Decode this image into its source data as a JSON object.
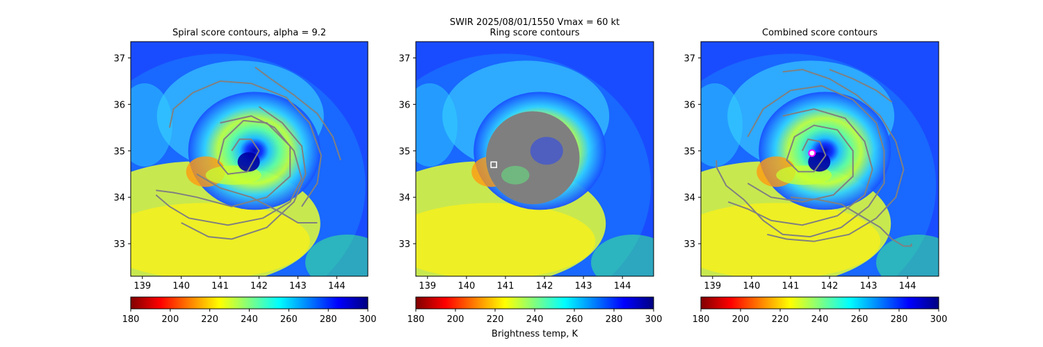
{
  "figure": {
    "suptitle_line1": "SWIR  2025/08/01/1550    Vmax = 60 kt",
    "colorbar_label": "Brightness temp, K"
  },
  "colors": {
    "contour": "#808080",
    "ring_fill": "#7f7f7f",
    "center_marker": "#ff00ff",
    "colormap": [
      "#800000",
      "#ff0000",
      "#ff8000",
      "#ffff00",
      "#80ff80",
      "#00ffff",
      "#0080ff",
      "#0000ff",
      "#000080"
    ]
  },
  "chart_data": [
    {
      "type": "heatmap",
      "title": "Spiral score contours, alpha =  9.2",
      "xlim": [
        138.7,
        144.8
      ],
      "ylim": [
        32.3,
        37.35
      ],
      "xticks": [
        "139",
        "140",
        "141",
        "142",
        "143",
        "144"
      ],
      "yticks": [
        "33",
        "34",
        "35",
        "36",
        "37"
      ],
      "xtick_values": [
        139,
        140,
        141,
        142,
        143,
        144
      ],
      "ytick_values": [
        33,
        34,
        35,
        36,
        37
      ],
      "storm_center": [
        141.7,
        34.85
      ],
      "colorbar": {
        "range": [
          180,
          300
        ],
        "ticks": [
          "180",
          "200",
          "220",
          "240",
          "260",
          "280",
          "300"
        ],
        "tick_values": [
          180,
          200,
          220,
          240,
          260,
          280,
          300
        ]
      },
      "contours": [
        {
          "name": "spiral-1",
          "points": [
            [
              141.3,
              35.0
            ],
            [
              141.5,
              35.25
            ],
            [
              141.8,
              35.25
            ],
            [
              142.0,
              35.0
            ],
            [
              141.7,
              34.55
            ],
            [
              141.2,
              34.5
            ],
            [
              140.95,
              34.75
            ],
            [
              141.1,
              35.25
            ],
            [
              141.6,
              35.65
            ],
            [
              142.2,
              35.6
            ],
            [
              142.8,
              35.1
            ],
            [
              142.8,
              34.45
            ],
            [
              142.2,
              34.0
            ],
            [
              141.3,
              33.8
            ],
            [
              140.4,
              34.0
            ],
            [
              139.8,
              34.1
            ],
            [
              139.35,
              34.15
            ]
          ]
        },
        {
          "name": "spiral-2",
          "points": [
            [
              141.0,
              35.6
            ],
            [
              141.8,
              35.75
            ],
            [
              142.4,
              35.5
            ],
            [
              142.9,
              35.0
            ],
            [
              143.1,
              34.4
            ],
            [
              142.8,
              33.9
            ],
            [
              142.1,
              33.55
            ],
            [
              141.2,
              33.4
            ],
            [
              140.2,
              33.55
            ],
            [
              139.7,
              33.8
            ],
            [
              139.35,
              34.05
            ]
          ]
        },
        {
          "name": "spiral-3",
          "points": [
            [
              142.0,
              35.95
            ],
            [
              142.6,
              35.6
            ],
            [
              143.1,
              35.1
            ],
            [
              143.2,
              34.5
            ],
            [
              142.9,
              33.9
            ],
            [
              142.2,
              33.35
            ],
            [
              141.3,
              33.1
            ],
            [
              140.7,
              33.15
            ],
            [
              140.0,
              33.45
            ]
          ]
        },
        {
          "name": "spiral-4",
          "points": [
            [
              139.7,
              35.5
            ],
            [
              139.8,
              35.9
            ],
            [
              140.3,
              36.25
            ],
            [
              141.0,
              36.5
            ],
            [
              141.8,
              36.45
            ],
            [
              142.7,
              36.15
            ],
            [
              143.3,
              35.6
            ],
            [
              143.6,
              34.9
            ],
            [
              143.5,
              34.3
            ],
            [
              143.1,
              33.8
            ]
          ]
        },
        {
          "name": "spiral-5",
          "points": [
            [
              141.9,
              36.8
            ],
            [
              142.3,
              36.55
            ],
            [
              142.9,
              36.2
            ],
            [
              143.5,
              35.8
            ],
            [
              143.9,
              35.3
            ],
            [
              144.1,
              34.8
            ]
          ]
        },
        {
          "name": "spiral-6",
          "points": [
            [
              140.4,
              34.5
            ],
            [
              141.0,
              34.2
            ],
            [
              141.8,
              34.0
            ],
            [
              142.5,
              33.7
            ],
            [
              143.0,
              33.45
            ],
            [
              143.3,
              33.45
            ],
            [
              143.5,
              33.45
            ]
          ]
        }
      ]
    },
    {
      "type": "heatmap",
      "title": "Ring score contours",
      "xlim": [
        138.7,
        144.8
      ],
      "ylim": [
        32.3,
        37.35
      ],
      "xticks": [
        "139",
        "140",
        "141",
        "142",
        "143",
        "144"
      ],
      "yticks": [
        "33",
        "34",
        "35",
        "36",
        "37"
      ],
      "xtick_values": [
        139,
        140,
        141,
        142,
        143,
        144
      ],
      "ytick_values": [
        33,
        34,
        35,
        36,
        37
      ],
      "storm_center": [
        141.7,
        34.85
      ],
      "ring": {
        "center": [
          141.7,
          34.85
        ],
        "radius_lon": 1.2,
        "radius_lat": 1.0
      },
      "marker": {
        "shape": "square",
        "position": [
          140.7,
          34.7
        ]
      },
      "colorbar": {
        "range": [
          180,
          300
        ],
        "ticks": [
          "180",
          "200",
          "220",
          "240",
          "260",
          "280",
          "300"
        ],
        "tick_values": [
          180,
          200,
          220,
          240,
          260,
          280,
          300
        ]
      },
      "contours": []
    },
    {
      "type": "heatmap",
      "title": "Combined score contours",
      "xlim": [
        138.7,
        144.8
      ],
      "ylim": [
        32.3,
        37.35
      ],
      "xticks": [
        "139",
        "140",
        "141",
        "142",
        "143",
        "144"
      ],
      "yticks": [
        "33",
        "34",
        "35",
        "36",
        "37"
      ],
      "xtick_values": [
        139,
        140,
        141,
        142,
        143,
        144
      ],
      "ytick_values": [
        33,
        34,
        35,
        36,
        37
      ],
      "storm_center": [
        141.7,
        34.85
      ],
      "marker": {
        "shape": "circle",
        "position": [
          141.55,
          34.95
        ]
      },
      "colorbar": {
        "range": [
          180,
          300
        ],
        "ticks": [
          "180",
          "200",
          "220",
          "240",
          "260",
          "280",
          "300"
        ],
        "tick_values": [
          180,
          200,
          220,
          240,
          260,
          280,
          300
        ]
      },
      "contours": [
        {
          "name": "spiral-1",
          "points": [
            [
              141.3,
              35.0
            ],
            [
              141.45,
              35.25
            ],
            [
              141.75,
              35.2
            ],
            [
              141.9,
              34.9
            ],
            [
              141.6,
              34.55
            ],
            [
              141.2,
              34.55
            ],
            [
              140.9,
              34.8
            ],
            [
              141.1,
              35.3
            ],
            [
              141.6,
              35.55
            ],
            [
              142.2,
              35.45
            ],
            [
              142.6,
              35.0
            ],
            [
              142.6,
              34.45
            ],
            [
              142.1,
              34.05
            ],
            [
              141.3,
              33.9
            ],
            [
              140.5,
              34.0
            ],
            [
              139.9,
              34.3
            ]
          ]
        },
        {
          "name": "spiral-2",
          "points": [
            [
              140.8,
              35.75
            ],
            [
              141.6,
              35.9
            ],
            [
              142.4,
              35.7
            ],
            [
              142.9,
              35.2
            ],
            [
              143.1,
              34.6
            ],
            [
              142.9,
              34.05
            ],
            [
              142.2,
              33.6
            ],
            [
              141.3,
              33.4
            ],
            [
              140.5,
              33.5
            ],
            [
              139.9,
              33.75
            ],
            [
              139.4,
              33.9
            ]
          ]
        },
        {
          "name": "spiral-3",
          "points": [
            [
              139.9,
              35.3
            ],
            [
              140.3,
              35.9
            ],
            [
              141.0,
              36.3
            ],
            [
              141.8,
              36.4
            ],
            [
              142.6,
              36.1
            ],
            [
              143.2,
              35.6
            ],
            [
              143.4,
              35.0
            ],
            [
              143.4,
              34.3
            ],
            [
              143.0,
              33.8
            ],
            [
              142.3,
              33.35
            ],
            [
              141.5,
              33.15
            ],
            [
              140.8,
              33.2
            ],
            [
              140.3,
              33.5
            ],
            [
              139.8,
              33.95
            ],
            [
              139.35,
              34.25
            ],
            [
              139.1,
              34.65
            ],
            [
              139.1,
              34.8
            ]
          ]
        },
        {
          "name": "spiral-4",
          "points": [
            [
              140.8,
              36.7
            ],
            [
              141.3,
              36.75
            ],
            [
              142.0,
              36.55
            ],
            [
              142.7,
              36.2
            ],
            [
              143.3,
              35.75
            ],
            [
              143.7,
              35.2
            ],
            [
              143.9,
              34.6
            ],
            [
              143.7,
              34.0
            ],
            [
              143.2,
              33.55
            ],
            [
              142.5,
              33.2
            ],
            [
              141.6,
              33.05
            ],
            [
              140.9,
              33.1
            ],
            [
              140.4,
              33.2
            ]
          ]
        },
        {
          "name": "spiral-5",
          "points": [
            [
              142.0,
              36.75
            ],
            [
              142.6,
              36.55
            ],
            [
              143.2,
              36.3
            ],
            [
              143.6,
              36.05
            ]
          ]
        },
        {
          "name": "spiral-6",
          "points": [
            [
              141.0,
              34.0
            ],
            [
              141.7,
              33.95
            ],
            [
              142.3,
              33.85
            ],
            [
              142.8,
              33.6
            ],
            [
              143.3,
              33.35
            ],
            [
              143.6,
              33.1
            ],
            [
              143.9,
              32.95
            ],
            [
              144.1,
              32.95
            ],
            [
              144.1,
              33.0
            ]
          ]
        }
      ]
    }
  ]
}
